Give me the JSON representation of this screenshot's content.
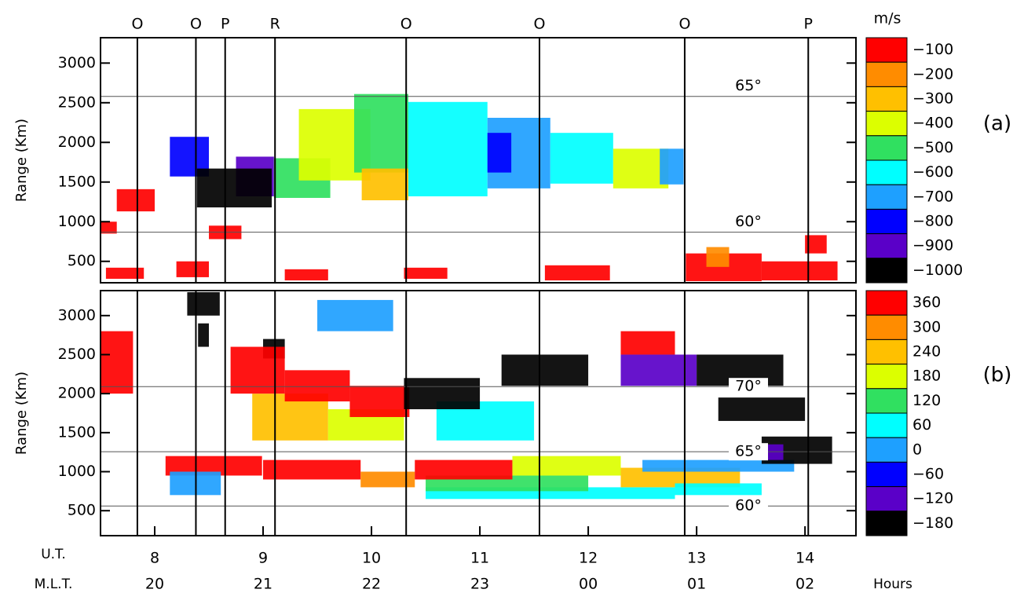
{
  "chart_data": [
    {
      "type": "heatmap",
      "ylabel": "Range (Km)",
      "panel_label": "(a)",
      "xlim": [
        7.5,
        14.47
      ],
      "ylim": [
        230,
        3320
      ],
      "yticks": [
        500,
        1000,
        1500,
        2000,
        2500,
        3000
      ],
      "events": [
        {
          "value": 7.84,
          "label": "O"
        },
        {
          "value": 8.38,
          "label": "O"
        },
        {
          "value": 8.65,
          "label": "P"
        },
        {
          "value": 9.11,
          "label": "R"
        },
        {
          "value": 10.32,
          "label": "O"
        },
        {
          "value": 11.55,
          "label": "O"
        },
        {
          "value": 12.89,
          "label": "O"
        },
        {
          "value": 14.03,
          "label": "P"
        }
      ],
      "latitudes": [
        {
          "value": 2580,
          "label": "65°"
        },
        {
          "value": 867,
          "label": "60°"
        }
      ],
      "colorbar": {
        "unit": "m/s",
        "levels": [
          {
            "value": -100,
            "label": "−100",
            "color": "#ff0000"
          },
          {
            "value": -200,
            "label": "−200",
            "color": "#ff8c00"
          },
          {
            "value": -300,
            "label": "−300",
            "color": "#ffc000"
          },
          {
            "value": -400,
            "label": "−400",
            "color": "#dcff00"
          },
          {
            "value": -500,
            "label": "−500",
            "color": "#30e060"
          },
          {
            "value": -600,
            "label": "−600",
            "color": "#00ffff"
          },
          {
            "value": -700,
            "label": "−700",
            "color": "#1ea0ff"
          },
          {
            "value": -800,
            "label": "−800",
            "color": "#0000ff"
          },
          {
            "value": -900,
            "label": "−900",
            "color": "#5a00c8"
          },
          {
            "value": -1000,
            "label": "−1000",
            "color": "#000000"
          }
        ]
      },
      "patches": [
        {
          "t": [
            7.5,
            7.65
          ],
          "r": [
            850,
            1000
          ],
          "v": -100
        },
        {
          "t": [
            7.65,
            8.0
          ],
          "r": [
            1130,
            1410
          ],
          "v": -100
        },
        {
          "t": [
            8.14,
            8.5
          ],
          "r": [
            1570,
            2070
          ],
          "v": -800
        },
        {
          "t": [
            8.75,
            9.1
          ],
          "r": [
            1320,
            1820
          ],
          "v": -900
        },
        {
          "t": [
            8.39,
            9.08
          ],
          "r": [
            1180,
            1670
          ],
          "v": -1000
        },
        {
          "t": [
            9.1,
            9.62
          ],
          "r": [
            1300,
            1800
          ],
          "v": -500
        },
        {
          "t": [
            9.33,
            9.99
          ],
          "r": [
            1520,
            2420
          ],
          "v": -400
        },
        {
          "t": [
            9.84,
            10.34
          ],
          "r": [
            1620,
            2610
          ],
          "v": -500
        },
        {
          "t": [
            9.91,
            10.34
          ],
          "r": [
            1270,
            1670
          ],
          "v": -300
        },
        {
          "t": [
            10.34,
            11.07
          ],
          "r": [
            1320,
            2510
          ],
          "v": -600
        },
        {
          "t": [
            11.07,
            11.65
          ],
          "r": [
            1420,
            2310
          ],
          "v": -700
        },
        {
          "t": [
            11.07,
            11.29
          ],
          "r": [
            1620,
            2120
          ],
          "v": -800
        },
        {
          "t": [
            11.65,
            12.23
          ],
          "r": [
            1480,
            2120
          ],
          "v": -600
        },
        {
          "t": [
            12.23,
            12.74
          ],
          "r": [
            1420,
            1920
          ],
          "v": -400
        },
        {
          "t": [
            12.66,
            12.88
          ],
          "r": [
            1470,
            1920
          ],
          "v": -700
        },
        {
          "t": [
            8.5,
            8.8
          ],
          "r": [
            780,
            950
          ],
          "v": -100
        },
        {
          "t": [
            7.55,
            7.9
          ],
          "r": [
            280,
            420
          ],
          "v": -100
        },
        {
          "t": [
            8.2,
            8.5
          ],
          "r": [
            300,
            500
          ],
          "v": -100
        },
        {
          "t": [
            9.2,
            9.6
          ],
          "r": [
            260,
            400
          ],
          "v": -100
        },
        {
          "t": [
            10.3,
            10.7
          ],
          "r": [
            280,
            420
          ],
          "v": -100
        },
        {
          "t": [
            11.6,
            12.2
          ],
          "r": [
            260,
            450
          ],
          "v": -100
        },
        {
          "t": [
            12.9,
            13.6
          ],
          "r": [
            250,
            600
          ],
          "v": -100
        },
        {
          "t": [
            13.09,
            13.3
          ],
          "r": [
            430,
            680
          ],
          "v": -200
        },
        {
          "t": [
            13.6,
            14.3
          ],
          "r": [
            260,
            500
          ],
          "v": -100
        },
        {
          "t": [
            14.0,
            14.2
          ],
          "r": [
            600,
            830
          ],
          "v": -100
        }
      ]
    },
    {
      "type": "heatmap",
      "ylabel": "Range (Km)",
      "panel_label": "(b)",
      "xlim": [
        7.5,
        14.47
      ],
      "ylim": [
        180,
        3320
      ],
      "yticks": [
        500,
        1000,
        1500,
        2000,
        2500,
        3000
      ],
      "xticks": [
        8,
        9,
        10,
        11,
        12,
        13,
        14
      ],
      "xlabel": "U.T.",
      "mlt_label": "M.L.T.",
      "hours_label": "Hours",
      "mlt_ticks": [
        {
          "value": 8,
          "label": "20"
        },
        {
          "value": 9,
          "label": "21"
        },
        {
          "value": 10,
          "label": "22"
        },
        {
          "value": 11,
          "label": "23"
        },
        {
          "value": 12,
          "label": "00"
        },
        {
          "value": 13,
          "label": "01"
        },
        {
          "value": 14,
          "label": "02"
        }
      ],
      "latitudes": [
        {
          "value": 2090,
          "label": "70°"
        },
        {
          "value": 1255,
          "label": "65°"
        },
        {
          "value": 560,
          "label": "60°"
        }
      ],
      "colorbar": {
        "levels": [
          {
            "value": 360,
            "color": "#ff0000"
          },
          {
            "value": 300,
            "color": "#ff8c00"
          },
          {
            "value": 240,
            "color": "#ffc000"
          },
          {
            "value": 180,
            "color": "#dcff00"
          },
          {
            "value": 120,
            "color": "#30e060"
          },
          {
            "value": 60,
            "color": "#00ffff"
          },
          {
            "value": 0,
            "color": "#1ea0ff"
          },
          {
            "value": -60,
            "label": "−60",
            "color": "#0000ff"
          },
          {
            "value": -120,
            "label": "−120",
            "color": "#5a00c8"
          },
          {
            "value": -180,
            "label": "−180",
            "color": "#000000"
          }
        ]
      },
      "patches": [
        {
          "t": [
            7.5,
            7.8
          ],
          "r": [
            2000,
            2800
          ],
          "v": 360
        },
        {
          "t": [
            8.3,
            8.6
          ],
          "r": [
            3000,
            3300
          ],
          "v": -180
        },
        {
          "t": [
            8.4,
            8.5
          ],
          "r": [
            2600,
            2900
          ],
          "v": -180
        },
        {
          "t": [
            9.0,
            9.2
          ],
          "r": [
            2450,
            2700
          ],
          "v": -180
        },
        {
          "t": [
            9.5,
            10.2
          ],
          "r": [
            2800,
            3200
          ],
          "v": 0
        },
        {
          "t": [
            8.9,
            9.6
          ],
          "r": [
            1400,
            2000
          ],
          "v": 240
        },
        {
          "t": [
            9.6,
            10.3
          ],
          "r": [
            1400,
            1800
          ],
          "v": 180
        },
        {
          "t": [
            8.7,
            9.2
          ],
          "r": [
            2000,
            2600
          ],
          "v": 360
        },
        {
          "t": [
            9.2,
            9.8
          ],
          "r": [
            1900,
            2300
          ],
          "v": 360
        },
        {
          "t": [
            9.8,
            10.35
          ],
          "r": [
            1700,
            2100
          ],
          "v": 360
        },
        {
          "t": [
            8.1,
            8.99
          ],
          "r": [
            950,
            1200
          ],
          "v": 360
        },
        {
          "t": [
            8.14,
            8.61
          ],
          "r": [
            700,
            1000
          ],
          "v": 0
        },
        {
          "t": [
            9.0,
            9.9
          ],
          "r": [
            900,
            1150
          ],
          "v": 360
        },
        {
          "t": [
            9.9,
            10.4
          ],
          "r": [
            800,
            1000
          ],
          "v": 300
        },
        {
          "t": [
            10.5,
            12.8
          ],
          "r": [
            650,
            800
          ],
          "v": 60
        },
        {
          "t": [
            10.5,
            12.0
          ],
          "r": [
            750,
            950
          ],
          "v": 120
        },
        {
          "t": [
            10.4,
            11.3
          ],
          "r": [
            900,
            1150
          ],
          "v": 360
        },
        {
          "t": [
            11.3,
            12.3
          ],
          "r": [
            950,
            1200
          ],
          "v": 180
        },
        {
          "t": [
            12.3,
            13.4
          ],
          "r": [
            800,
            1050
          ],
          "v": 240
        },
        {
          "t": [
            12.8,
            13.6
          ],
          "r": [
            700,
            850
          ],
          "v": 60
        },
        {
          "t": [
            12.5,
            13.9
          ],
          "r": [
            1000,
            1150
          ],
          "v": 0
        },
        {
          "t": [
            13.6,
            14.25
          ],
          "r": [
            1100,
            1450
          ],
          "v": -180
        },
        {
          "t": [
            13.5,
            13.8
          ],
          "r": [
            1150,
            1350
          ],
          "v": -120
        },
        {
          "t": [
            10.6,
            11.5
          ],
          "r": [
            1400,
            1900
          ],
          "v": 60
        },
        {
          "t": [
            10.3,
            11.0
          ],
          "r": [
            1800,
            2200
          ],
          "v": -180
        },
        {
          "t": [
            11.2,
            12.0
          ],
          "r": [
            2100,
            2500
          ],
          "v": -180
        },
        {
          "t": [
            12.3,
            13.0
          ],
          "r": [
            2100,
            2500
          ],
          "v": -120
        },
        {
          "t": [
            13.0,
            13.8
          ],
          "r": [
            2100,
            2500
          ],
          "v": -180
        },
        {
          "t": [
            13.2,
            14.0
          ],
          "r": [
            1650,
            1950
          ],
          "v": -180
        },
        {
          "t": [
            12.3,
            12.8
          ],
          "r": [
            2500,
            2800
          ],
          "v": 360
        }
      ]
    }
  ]
}
